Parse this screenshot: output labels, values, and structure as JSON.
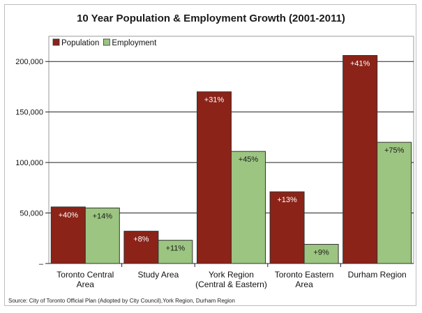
{
  "chart_data": {
    "type": "bar",
    "title": "10 Year Population & Employment Growth (2001-2011)",
    "categories": [
      [
        "Toronto Central",
        "Area"
      ],
      [
        "Study Area"
      ],
      [
        "York Region",
        "(Central & Eastern)"
      ],
      [
        "Toronto Eastern",
        "Area"
      ],
      [
        "Durham Region"
      ]
    ],
    "series": [
      {
        "name": "Population",
        "color": "#8b2318",
        "values": [
          56000,
          32000,
          170000,
          71000,
          206000
        ],
        "labels": [
          "+40%",
          "+8%",
          "+31%",
          "+13%",
          "+41%"
        ]
      },
      {
        "name": "Employment",
        "color": "#9cc581",
        "values": [
          55000,
          23000,
          111000,
          19000,
          120000
        ],
        "labels": [
          "+14%",
          "+11%",
          "+45%",
          "+9%",
          "+75%"
        ]
      }
    ],
    "yticks": [
      0,
      50000,
      100000,
      150000,
      200000
    ],
    "ytick_labels": [
      "–",
      "50,000",
      "100,000",
      "150,000",
      "200,000"
    ],
    "ylim": [
      0,
      225000
    ],
    "grid": true,
    "legend_position": "top-left",
    "source": "Source: City of Toronto Official Plan (Adopted by City Council),York Region, Durham Region"
  }
}
